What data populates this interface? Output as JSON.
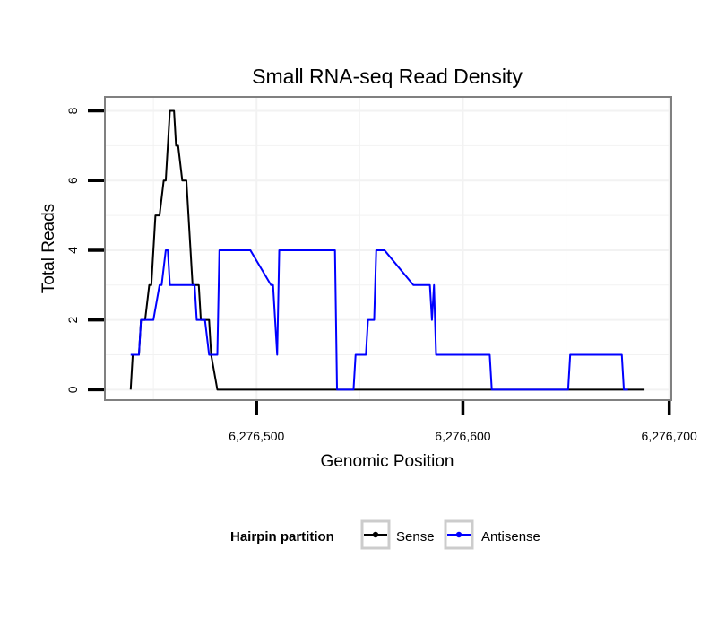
{
  "chart_data": {
    "type": "line",
    "title": "Small RNA-seq Read Density",
    "xlabel": "Genomic Position",
    "ylabel": "Total Reads",
    "xlim": [
      6276426.5,
      6276701
    ],
    "ylim": [
      -0.3,
      8.4
    ],
    "x_ticks": [
      6276500,
      6276600,
      6276700
    ],
    "x_tick_labels": [
      "6,276,500",
      "6,276,600",
      "6,276,700"
    ],
    "y_ticks": [
      0,
      2,
      4,
      6,
      8
    ],
    "y_tick_labels": [
      "0",
      "2",
      "4",
      "6",
      "8"
    ],
    "grid": true,
    "legend": {
      "title": "Hairpin partition",
      "position": "bottom",
      "entries": [
        "Sense",
        "Antisense"
      ]
    },
    "colors": {
      "Sense": "#000000",
      "Antisense": "#0000ff",
      "panel_border": "#808080",
      "grid": "#f2f2f2"
    },
    "series": [
      {
        "name": "Sense",
        "x": [
          6276439,
          6276440,
          6276443,
          6276444,
          6276446,
          6276448,
          6276449,
          6276451,
          6276452,
          6276453,
          6276455,
          6276456,
          6276457,
          6276458,
          6276460,
          6276461,
          6276462,
          6276464,
          6276465,
          6276466,
          6276467,
          6276469,
          6276470,
          6276471,
          6276472,
          6276473,
          6276477,
          6276478,
          6276481,
          6276482,
          6276688
        ],
        "values": [
          0,
          1,
          1,
          2,
          2,
          3,
          3,
          5,
          5,
          5,
          6,
          6,
          7,
          8,
          8,
          7,
          7,
          6,
          6,
          6,
          5,
          3,
          3,
          3,
          3,
          2,
          2,
          1,
          0,
          0,
          0
        ]
      },
      {
        "name": "Antisense",
        "x": [
          6276439,
          6276443,
          6276444,
          6276450,
          6276453,
          6276454,
          6276456,
          6276457,
          6276458,
          6276460,
          6276461,
          6276470,
          6276471,
          6276474,
          6276475,
          6276477,
          6276478,
          6276481,
          6276482,
          6276484,
          6276485,
          6276497,
          6276507,
          6276508,
          6276510,
          6276511,
          6276512,
          6276513,
          6276538,
          6276539,
          6276547,
          6276548,
          6276553,
          6276554,
          6276557,
          6276558,
          6276562,
          6276576,
          6276578,
          6276584,
          6276585,
          6276586,
          6276587,
          6276590,
          6276613,
          6276614,
          6276651,
          6276652,
          6276677,
          6276678,
          6276680
        ],
        "values": [
          1,
          1,
          2,
          2,
          3,
          3,
          4,
          4,
          3,
          3,
          3,
          3,
          2,
          2,
          2,
          1,
          1,
          1,
          4,
          4,
          4,
          4,
          3,
          3,
          1,
          4,
          4,
          4,
          4,
          0,
          0,
          1,
          1,
          2,
          2,
          4,
          4,
          3,
          3,
          3,
          2,
          3,
          1,
          1,
          1,
          0,
          0,
          1,
          1,
          0,
          0
        ]
      }
    ]
  }
}
